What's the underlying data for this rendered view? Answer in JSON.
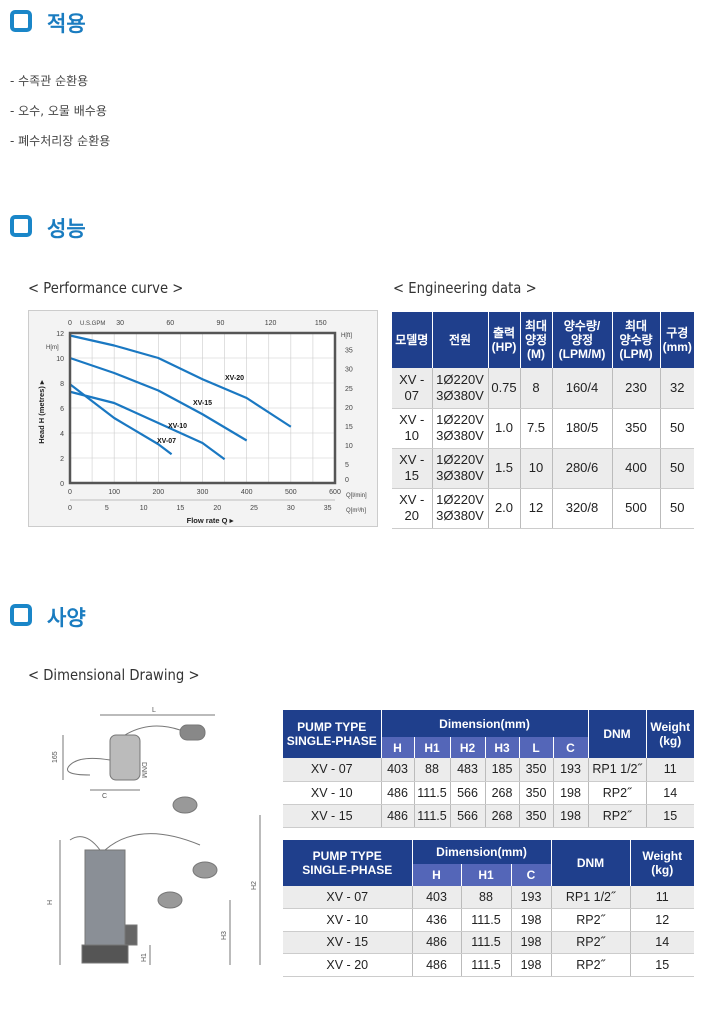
{
  "sections": {
    "apply": {
      "title": "적용",
      "items": [
        "- 수족관 순환용",
        "- 오수, 오물 배수용",
        "- 폐수처리장 순환용"
      ]
    },
    "performance": {
      "title": "성능",
      "curve_label": "< Performance curve >",
      "data_label": "< Engineering data >"
    },
    "spec": {
      "title": "사양",
      "drawing_label": "< Dimensional Drawing >"
    }
  },
  "chart_data": {
    "type": "line",
    "xlabel": "Flow rate Q ▸",
    "ylabel": "Head H (metres) ▸",
    "x_unit": "Q[l/min]",
    "x2_unit": "Q[m³/h]",
    "top_unit": "U.S.GPM",
    "y_unit": "H[m]",
    "y2_unit": "H[ft]",
    "xlim": [
      0,
      600
    ],
    "ylim": [
      0,
      12
    ],
    "x_ticks": [
      0,
      100,
      200,
      300,
      400,
      500,
      600
    ],
    "x2_ticks": [
      "0",
      "5",
      "10",
      "15",
      "20",
      "25",
      "30",
      "35"
    ],
    "top_ticks": [
      "0",
      "30",
      "60",
      "90",
      "120",
      "150"
    ],
    "y_ticks": [
      0,
      2,
      4,
      6,
      8,
      10,
      12
    ],
    "y2_ticks": [
      "0",
      "5",
      "10",
      "15",
      "20",
      "25",
      "30",
      "35"
    ],
    "grid": true,
    "series": [
      {
        "name": "XV-20",
        "points": [
          [
            0,
            11.8
          ],
          [
            100,
            11
          ],
          [
            200,
            10
          ],
          [
            300,
            8.3
          ],
          [
            400,
            6.8
          ],
          [
            500,
            4.5
          ]
        ]
      },
      {
        "name": "XV-15",
        "points": [
          [
            0,
            10
          ],
          [
            100,
            8.8
          ],
          [
            200,
            7.4
          ],
          [
            300,
            5.5
          ],
          [
            400,
            3.4
          ]
        ]
      },
      {
        "name": "XV-10",
        "points": [
          [
            0,
            7.3
          ],
          [
            100,
            6.4
          ],
          [
            200,
            4.8
          ],
          [
            300,
            3.2
          ],
          [
            350,
            1.9
          ]
        ]
      },
      {
        "name": "XV-07",
        "points": [
          [
            0,
            7.9
          ],
          [
            100,
            5.2
          ],
          [
            200,
            3.1
          ],
          [
            230,
            2.3
          ]
        ]
      }
    ],
    "color": "#1a78c2"
  },
  "engineering": {
    "headers": [
      "모델명",
      "전원",
      "출력\n(HP)",
      "최대\n양정\n(M)",
      "양수량/\n양정\n(LPM/M)",
      "최대\n양수량\n(LPM)",
      "구경\n(mm)"
    ],
    "rows": [
      [
        "XV -\n07",
        "1Ø220V\n3Ø380V",
        "0.75",
        "8",
        "160/4",
        "230",
        "32"
      ],
      [
        "XV -\n10",
        "1Ø220V\n3Ø380V",
        "1.0",
        "7.5",
        "180/5",
        "350",
        "50"
      ],
      [
        "XV -\n15",
        "1Ø220V\n3Ø380V",
        "1.5",
        "10",
        "280/6",
        "400",
        "50"
      ],
      [
        "XV -\n20",
        "1Ø220V\n3Ø380V",
        "2.0",
        "12",
        "320/8",
        "500",
        "50"
      ]
    ]
  },
  "dim1": {
    "type_header": "PUMP TYPE\nSINGLE-PHASE",
    "dim_header": "Dimension(mm)",
    "dnm": "DNM",
    "weight": "Weight\n(kg)",
    "cols": [
      "H",
      "H1",
      "H2",
      "H3",
      "L",
      "C"
    ],
    "rows": [
      [
        "XV - 07",
        "403",
        "88",
        "483",
        "185",
        "350",
        "193",
        "RP1 1/2˝",
        "11"
      ],
      [
        "XV - 10",
        "486",
        "111.5",
        "566",
        "268",
        "350",
        "198",
        "RP2˝",
        "14"
      ],
      [
        "XV - 15",
        "486",
        "111.5",
        "566",
        "268",
        "350",
        "198",
        "RP2˝",
        "15"
      ]
    ]
  },
  "dim2": {
    "type_header": "PUMP TYPE\nSINGLE-PHASE",
    "dim_header": "Dimension(mm)",
    "dnm": "DNM",
    "weight": "Weight\n(kg)",
    "cols": [
      "H",
      "H1",
      "C"
    ],
    "rows": [
      [
        "XV - 07",
        "403",
        "88",
        "193",
        "RP1 1/2˝",
        "11"
      ],
      [
        "XV - 10",
        "436",
        "111.5",
        "198",
        "RP2˝",
        "12"
      ],
      [
        "XV - 15",
        "486",
        "111.5",
        "198",
        "RP2˝",
        "14"
      ],
      [
        "XV - 20",
        "486",
        "111.5",
        "198",
        "RP2˝",
        "15"
      ]
    ]
  },
  "drawing": {
    "L": "L",
    "DNM": "DNM",
    "C": "C",
    "d165": "165",
    "H": "H",
    "H1": "H1",
    "H2": "H2",
    "H3": "H3"
  }
}
